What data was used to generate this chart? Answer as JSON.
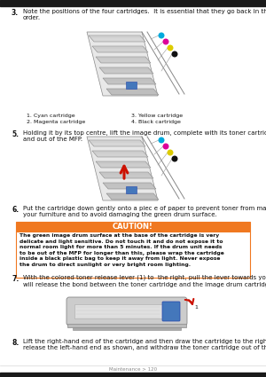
{
  "bg_color": "#ffffff",
  "footer_text": "Maintenance > 120",
  "step3_num": "3.",
  "step3_text": "Note the positions of the four cartridges.  It is essential that they go back in the same\norder.",
  "step5_num": "5.",
  "step5_text": "Holding it by its top centre, lift the image drum, complete with its toner cartridge, up\nand out of the MFP.",
  "step6_num": "6.",
  "step6_text": "Put the cartridge down gently onto a piec e of paper to prevent toner from marking\nyour furniture and to avoid damaging the green drum surface.",
  "step7_num": "7.",
  "step7_text": "With the colored toner release lever (1) to  the right, pull the lever towards you. This\nwill release the bond between the toner cartridge and the image drum cartridge.",
  "step8_num": "8.",
  "step8_text": "Lift the right-hand end of the cartridge and then draw the cartridge to the right to\nrelease the left-hand end as shown, and withdraw the toner cartridge out of the",
  "caution_title": "CAUTION!",
  "caution_text": "The green image drum surface at the base of the cartridge is very\ndelicate and light sensitive. Do not touch it and do not expose it to\nnormal room light for more than 5 minutes. If the drum unit needs\nto be out of the MFP for longer than this, please wrap the cartridge\ninside a black plastic bag to keep it away from light. Never expose\nthe drum to direct sunlight or very bright room lighting.",
  "caution_hdr_color": "#f07820",
  "caution_border_color": "#f07820",
  "legend_col1": [
    "1. Cyan cartridge",
    "2. Magenta cartridge"
  ],
  "legend_col2": [
    "3. Yellow cartridge",
    "4. Black cartridge"
  ],
  "dot_colors": [
    "#00aadd",
    "#dd0099",
    "#ddcc00",
    "#111111"
  ],
  "tray_face": "#d4d4d4",
  "tray_edge": "#888888",
  "dark_bar": "#1a1a1a",
  "text_color": "#111111",
  "footer_color": "#888888",
  "blue_cartridge": "#4477bb",
  "red_arrow": "#cc1100"
}
